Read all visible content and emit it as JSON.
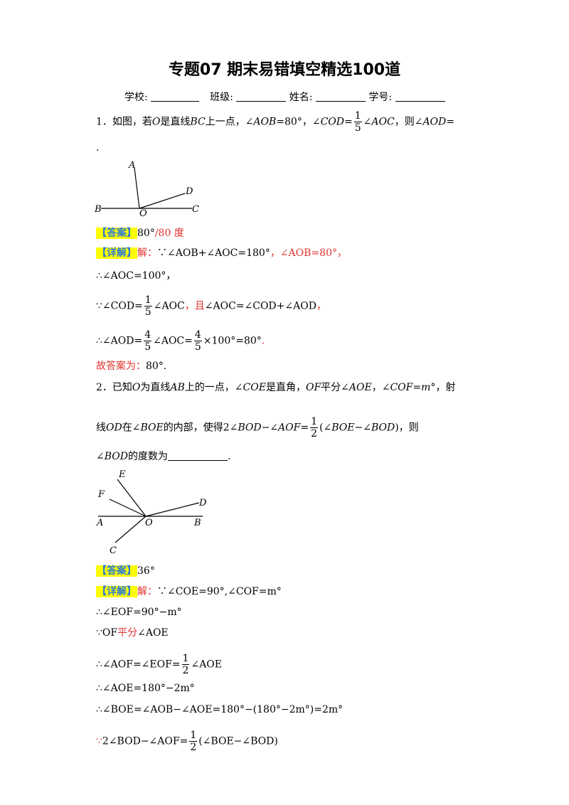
{
  "title": "专题07 期末易错填空精选100道",
  "info": {
    "school": "学校:",
    "class": "班级:",
    "name": "姓名:",
    "id": "学号:"
  },
  "q1": {
    "p1": "1．如图，若",
    "O": "O",
    "p2": "是直线",
    "BC": "BC",
    "p3": "上一点，∠",
    "AOB": "AOB",
    "p4": "=80°，∠",
    "COD": "COD",
    "eq": "=",
    "num": "1",
    "den": "5",
    "p5": "∠",
    "AOC": "AOC",
    "p6": "，则∠",
    "AOD": "AOD",
    "p7": "=",
    "dot": ".",
    "fig": {
      "A": "A",
      "B": "B",
      "O": "O",
      "C": "C",
      "D": "D"
    },
    "answer_tag": "【答案】",
    "answer": "80°",
    "answer_alt": "/80 度",
    "detail_tag": "【详解】",
    "jie": "解：",
    "d1a": "∵∠AOB+∠AOC=180°",
    "d1b": "，∠AOB=80°",
    "d1c": "，",
    "d2": "∴∠AOC=100°，",
    "d3a": "∵∠COD=",
    "d3num": "1",
    "d3den": "5",
    "d3b": "∠AOC",
    "d3c": "，且",
    "d3d": "∠AOC=∠COD+∠AOD",
    "d3e": "，",
    "d4a": "∴∠AOD=",
    "d4num": "4",
    "d4den": "5",
    "d4b": "∠AOC=",
    "d4num2": "4",
    "d4den2": "5",
    "d4c": "×100°=80°",
    "d4d": ".",
    "final": "故答案为：",
    "final_val": "80°."
  },
  "q2": {
    "p1": "2．已知",
    "O": "O",
    "p2": "为直线",
    "AB": "AB",
    "p3": "上的一点，∠",
    "COE": "COE",
    "p4": "是直角，",
    "OF": "OF",
    "p5": "平分∠",
    "AOE": "AOE",
    "p6": "，∠",
    "COF": "COF",
    "p7": "=",
    "m": "m",
    "p8": "°，射",
    "l2a": "线",
    "OD": "OD",
    "l2b": "在∠",
    "BOE": "BOE",
    "l2c": "的内部，使得2∠",
    "BOD": "BOD",
    "l2d": "−∠",
    "AOF": "AOF",
    "l2e": "=",
    "num": "1",
    "den": "2",
    "l2f": "(∠",
    "BOE2": "BOE",
    "l2g": "−∠",
    "BOD2": "BOD",
    "l2h": ")，则",
    "l3a": "∠",
    "BOD3": "BOD",
    "l3b": "的度数为",
    "l3c": ".",
    "fig": {
      "E": "E",
      "F": "F",
      "D": "D",
      "A": "A",
      "O": "O",
      "B": "B",
      "C": "C"
    },
    "answer_tag": "【答案】",
    "answer": "36°",
    "detail_tag": "【详解】",
    "jie": "解：",
    "d1": "∵∠COE=90°,∠COF=m°",
    "d2": "∴∠EOF=90°−m°",
    "d3a": "∵OF",
    "d3b": "平分",
    "d3c": "∠AOE",
    "d4a": "∴∠AOF=∠EOF=",
    "d4num": "1",
    "d4den": "2",
    "d4b": "∠AOE",
    "d5": "∴∠AOE=180°−2m°",
    "d6": "∴∠BOE=∠AOB−∠AOE=180°−(180°−2m°)=2m°",
    "d7a": "∵",
    "d7b": "2∠BOD−∠AOF=",
    "d7num": "1",
    "d7den": "2",
    "d7c": "(∠BOE−∠BOD)"
  }
}
